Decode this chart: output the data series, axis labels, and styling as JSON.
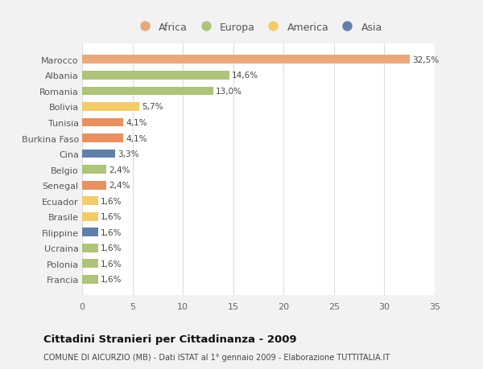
{
  "countries": [
    "Francia",
    "Polonia",
    "Ucraina",
    "Filippine",
    "Brasile",
    "Ecuador",
    "Senegal",
    "Belgio",
    "Cina",
    "Burkina Faso",
    "Tunisia",
    "Bolivia",
    "Romania",
    "Albania",
    "Marocco"
  ],
  "values": [
    1.6,
    1.6,
    1.6,
    1.6,
    1.6,
    1.6,
    2.4,
    2.4,
    3.3,
    4.1,
    4.1,
    5.7,
    13.0,
    14.6,
    32.5
  ],
  "labels": [
    "1,6%",
    "1,6%",
    "1,6%",
    "1,6%",
    "1,6%",
    "1,6%",
    "2,4%",
    "2,4%",
    "3,3%",
    "4,1%",
    "4,1%",
    "5,7%",
    "13,0%",
    "14,6%",
    "32,5%"
  ],
  "colors": [
    "#adc47a",
    "#adc47a",
    "#adc47a",
    "#6080aa",
    "#f2cc6a",
    "#f2cc6a",
    "#e89060",
    "#adc47a",
    "#6080aa",
    "#e89060",
    "#e89060",
    "#f2cc6a",
    "#adc47a",
    "#adc47a",
    "#e8a87c"
  ],
  "legend_labels": [
    "Africa",
    "Europa",
    "America",
    "Asia"
  ],
  "legend_colors": [
    "#e8a87c",
    "#adc47a",
    "#f2cc6a",
    "#6080aa"
  ],
  "title": "Cittadini Stranieri per Cittadinanza - 2009",
  "subtitle": "COMUNE DI AICURZIO (MB) - Dati ISTAT al 1° gennaio 2009 - Elaborazione TUTTITALIA.IT",
  "xlim": [
    0,
    35
  ],
  "xticks": [
    0,
    5,
    10,
    15,
    20,
    25,
    30,
    35
  ],
  "background_color": "#f2f2f2",
  "plot_bg_color": "#ffffff"
}
